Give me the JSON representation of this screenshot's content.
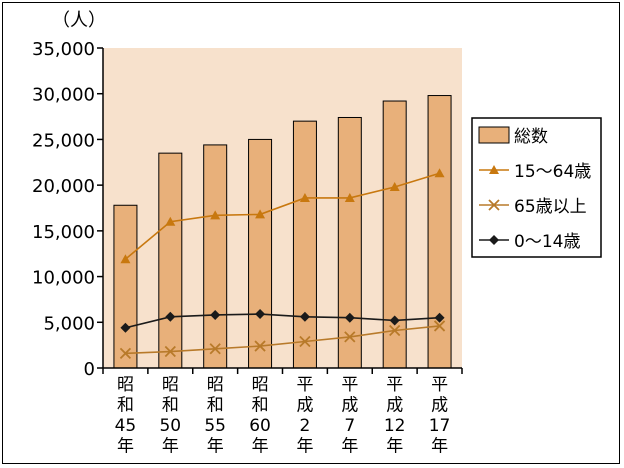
{
  "chart_data": {
    "type": "bar",
    "unit_label": "（人）",
    "categories": [
      [
        "昭",
        "和",
        "45",
        "年"
      ],
      [
        "昭",
        "和",
        "50",
        "年"
      ],
      [
        "昭",
        "和",
        "55",
        "年"
      ],
      [
        "昭",
        "和",
        "60",
        "年"
      ],
      [
        "平",
        "成",
        "2",
        "年"
      ],
      [
        "平",
        "成",
        "7",
        "年"
      ],
      [
        "平",
        "成",
        "12",
        "年"
      ],
      [
        "平",
        "成",
        "17",
        "年"
      ]
    ],
    "ylim": [
      0,
      35000
    ],
    "yticks": [
      0,
      5000,
      10000,
      15000,
      20000,
      25000,
      30000,
      35000
    ],
    "ytick_labels": [
      "0",
      "5,000",
      "10,000",
      "15,000",
      "20,000",
      "25,000",
      "30,000",
      "35,000"
    ],
    "series": [
      {
        "name": "総数",
        "kind": "bar",
        "color": "#e8b07a",
        "values": [
          17800,
          23500,
          24400,
          25000,
          27000,
          27400,
          29200,
          29800
        ]
      },
      {
        "name": "15～64歳",
        "kind": "line",
        "marker": "triangle",
        "color": "#c8780f",
        "values": [
          11900,
          16000,
          16700,
          16800,
          18600,
          18600,
          19800,
          21300
        ]
      },
      {
        "name": "65歳以上",
        "kind": "line",
        "marker": "x",
        "color": "#b87a2a",
        "values": [
          1600,
          1800,
          2100,
          2400,
          2900,
          3400,
          4100,
          4600
        ]
      },
      {
        "name": "0～14歳",
        "kind": "line",
        "marker": "diamond",
        "color": "#1a1a1a",
        "values": [
          4400,
          5600,
          5800,
          5900,
          5600,
          5500,
          5200,
          5500
        ]
      }
    ],
    "legend_position": "right",
    "plot_background": "#f7e1cc",
    "grid": false
  }
}
